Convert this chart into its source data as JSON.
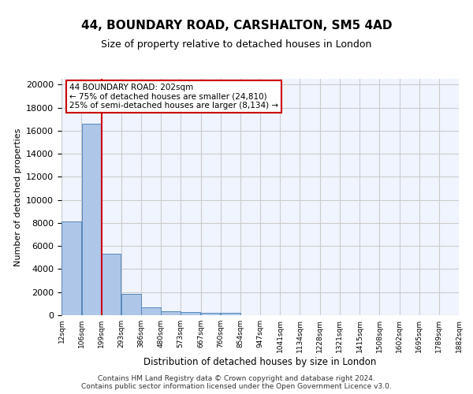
{
  "title": "44, BOUNDARY ROAD, CARSHALTON, SM5 4AD",
  "subtitle": "Size of property relative to detached houses in London",
  "xlabel": "Distribution of detached houses by size in London",
  "ylabel": "Number of detached properties",
  "footer_line1": "Contains HM Land Registry data © Crown copyright and database right 2024.",
  "footer_line2": "Contains public sector information licensed under the Open Government Licence v3.0.",
  "bar_color": "#aec6e8",
  "bar_edge_color": "#5588bb",
  "grid_color": "#cccccc",
  "annotation_box_color": "#cc0000",
  "vline_color": "#cc0000",
  "property_size": 202,
  "property_label": "44 BOUNDARY ROAD: 202sqm",
  "annotation_line1": "← 75% of detached houses are smaller (24,810)",
  "annotation_line2": "25% of semi-detached houses are larger (8,134) →",
  "bin_edges": [
    12,
    106,
    199,
    293,
    386,
    480,
    573,
    667,
    760,
    854,
    947,
    1041,
    1134,
    1228,
    1321,
    1415,
    1508,
    1602,
    1695,
    1789,
    1882
  ],
  "bin_labels": [
    "12sqm",
    "106sqm",
    "199sqm",
    "293sqm",
    "386sqm",
    "480sqm",
    "573sqm",
    "667sqm",
    "760sqm",
    "854sqm",
    "947sqm",
    "1041sqm",
    "1134sqm",
    "1228sqm",
    "1321sqm",
    "1415sqm",
    "1508sqm",
    "1602sqm",
    "1695sqm",
    "1789sqm",
    "1882sqm"
  ],
  "bar_heights": [
    8100,
    16600,
    5300,
    1850,
    680,
    360,
    290,
    230,
    190,
    0,
    0,
    0,
    0,
    0,
    0,
    0,
    0,
    0,
    0,
    0
  ],
  "ylim": [
    0,
    20500
  ],
  "yticks": [
    0,
    2000,
    4000,
    6000,
    8000,
    10000,
    12000,
    14000,
    16000,
    18000,
    20000
  ],
  "background_color": "#f0f4ff"
}
